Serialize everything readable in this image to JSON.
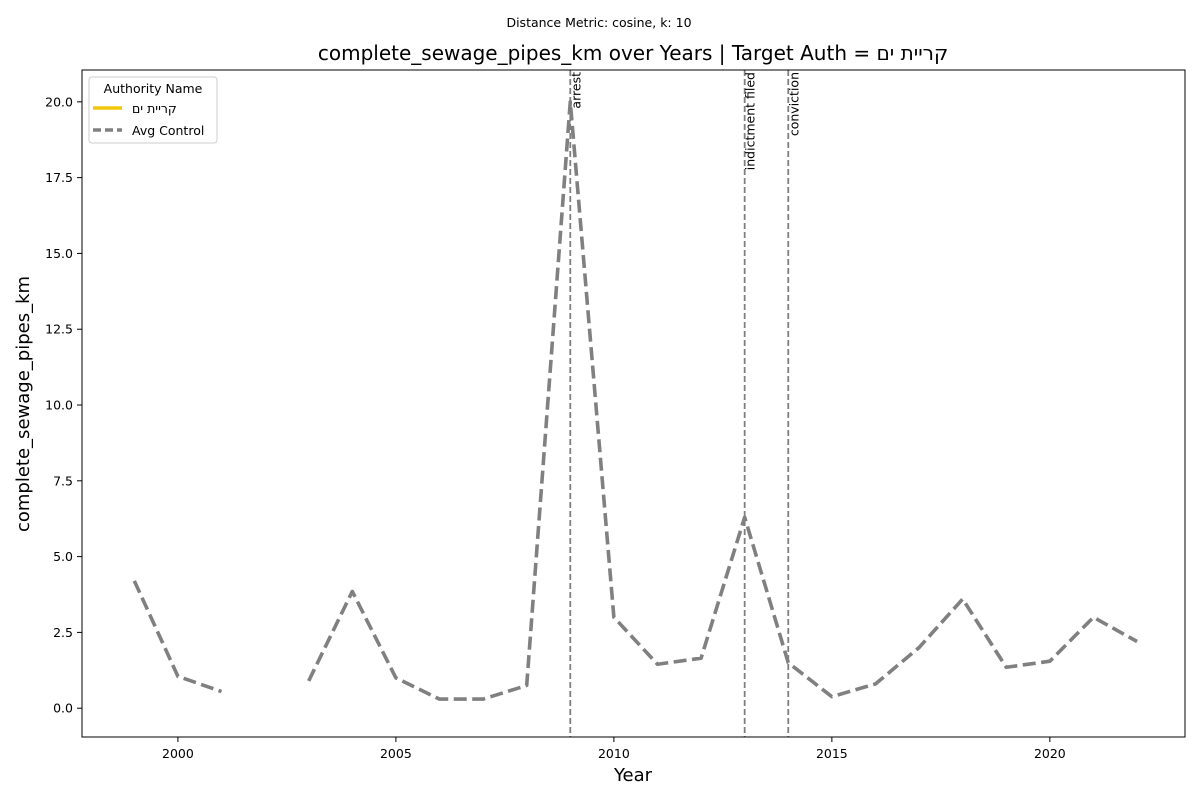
{
  "chart_data": {
    "type": "line",
    "suptitle": "Distance Metric: cosine, k: 10",
    "title": "complete_sewage_pipes_km over Years | Target Auth = קריית ים",
    "xlabel": "Year",
    "ylabel": "complete_sewage_pipes_km",
    "xlim": [
      1997.8,
      2023.1
    ],
    "ylim": [
      -0.95,
      21.05
    ],
    "xticks": [
      2000,
      2005,
      2010,
      2015,
      2020
    ],
    "yticks": [
      0.0,
      2.5,
      5.0,
      7.5,
      10.0,
      12.5,
      15.0,
      17.5,
      20.0
    ],
    "ytick_labels": [
      "0.0",
      "2.5",
      "5.0",
      "7.5",
      "10.0",
      "12.5",
      "15.0",
      "17.5",
      "20.0"
    ],
    "grid": false,
    "legend": {
      "title": "Authority Name",
      "placement": "upper-left"
    },
    "series": [
      {
        "name": "קריית ים",
        "color": "#f0c808",
        "style": "solid",
        "points": []
      },
      {
        "name": "Avg Control",
        "color": "#808080",
        "style": "dashed",
        "points": [
          [
            1999,
            4.2
          ],
          [
            2000,
            1.05
          ],
          [
            2001,
            0.55
          ],
          [
            2002,
            null
          ],
          [
            2003,
            0.9
          ],
          [
            2004,
            3.85
          ],
          [
            2005,
            1.0
          ],
          [
            2006,
            0.3
          ],
          [
            2007,
            0.3
          ],
          [
            2008,
            0.75
          ],
          [
            2009,
            20.0
          ],
          [
            2010,
            3.0
          ],
          [
            2011,
            1.45
          ],
          [
            2012,
            1.65
          ],
          [
            2013,
            6.3
          ],
          [
            2014,
            1.5
          ],
          [
            2015,
            0.38
          ],
          [
            2016,
            0.8
          ],
          [
            2017,
            2.0
          ],
          [
            2018,
            3.6
          ],
          [
            2019,
            1.35
          ],
          [
            2020,
            1.55
          ],
          [
            2021,
            3.0
          ],
          [
            2022,
            2.2
          ]
        ]
      }
    ],
    "events": [
      {
        "year": 2009,
        "label": "arrest"
      },
      {
        "year": 2013,
        "label": "indictment filed"
      },
      {
        "year": 2014,
        "label": "conviction"
      }
    ]
  }
}
